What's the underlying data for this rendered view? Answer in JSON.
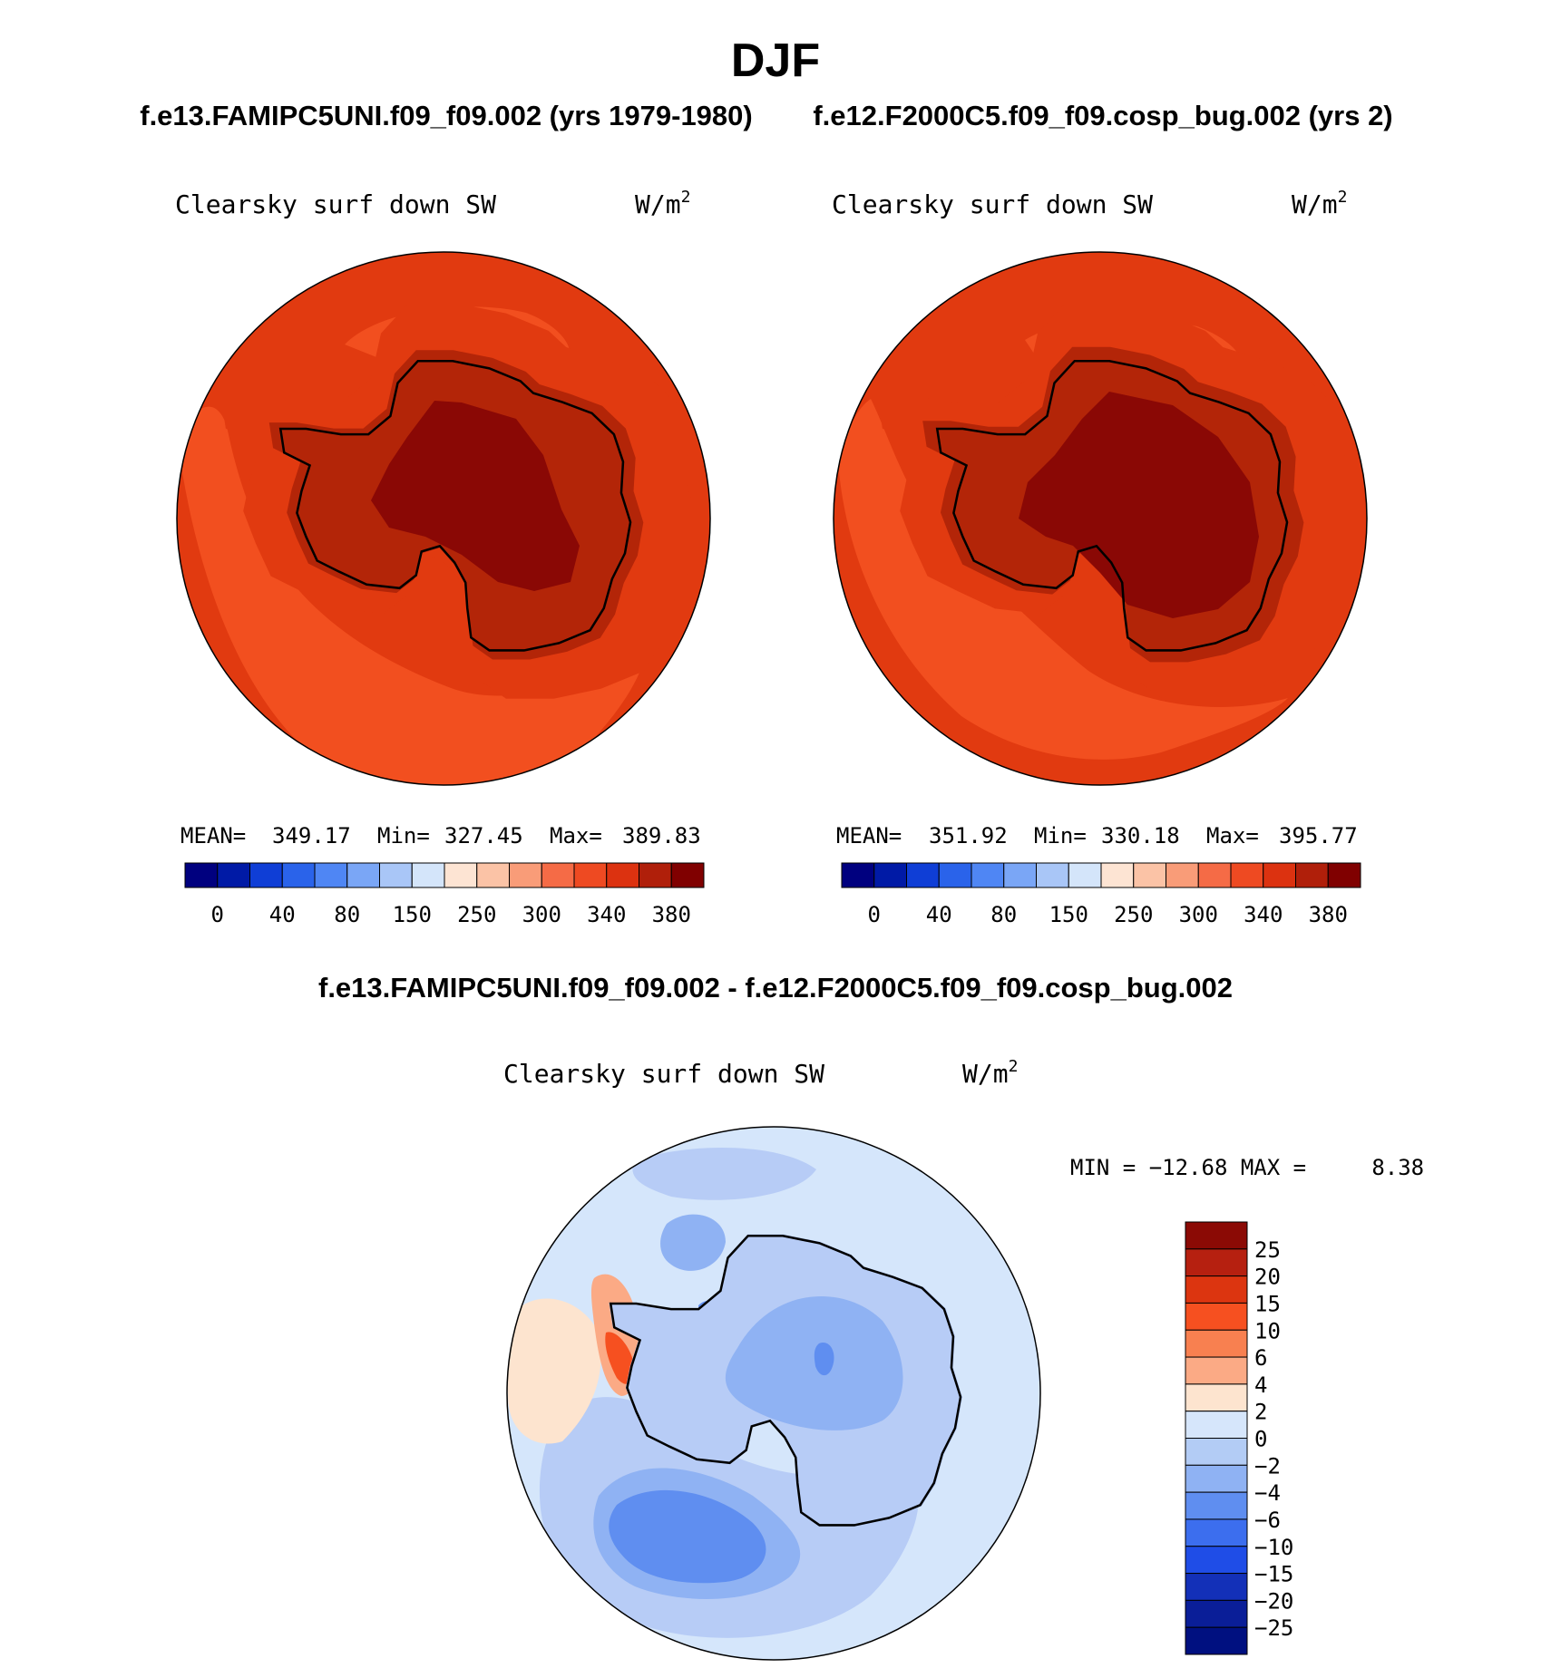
{
  "title": "DJF",
  "subtitle_left": "f.e13.FAMIPC5UNI.f09_f09.002 (yrs 1979-1980)",
  "subtitle_right": "f.e12.F2000C5.f09_f09.cosp_bug.002 (yrs 2)",
  "diff_title": "f.e13.FAMIPC5UNI.f09_f09.002 - f.e12.F2000C5.f09_f09.cosp_bug.002",
  "panels": {
    "left": {
      "variable": "Clearsky surf down SW",
      "units": "W/m",
      "units_sup": "2",
      "mean_label": "MEAN=",
      "mean_value": "349.17",
      "min_label": "Min=",
      "min_value": "327.45",
      "max_label": "Max=",
      "max_value": "389.83"
    },
    "right": {
      "variable": "Clearsky surf down SW",
      "units": "W/m",
      "units_sup": "2",
      "mean_label": "MEAN=",
      "mean_value": "351.92",
      "min_label": "Min=",
      "min_value": "330.18",
      "max_label": "Max=",
      "max_value": "395.77"
    },
    "diff": {
      "variable": "Clearsky surf down SW",
      "units": "W/m",
      "units_sup": "2",
      "minmax_text": "MIN = −12.68 MAX =     8.38"
    }
  },
  "colorbar_abs": {
    "labels": [
      "0",
      "40",
      "80",
      "150",
      "250",
      "300",
      "340",
      "380"
    ],
    "colors": [
      "#00007f",
      "#001aa6",
      "#0f3ed6",
      "#2a63ea",
      "#4f86f4",
      "#7aa6f6",
      "#a9c6f7",
      "#d4e5fa",
      "#fde4d3",
      "#fbc3a6",
      "#f99c78",
      "#f56b46",
      "#ee4a22",
      "#dc3210",
      "#b01f0a",
      "#800000"
    ]
  },
  "colorbar_diff": {
    "labels": [
      "25",
      "20",
      "15",
      "10",
      "6",
      "4",
      "2",
      "0",
      "−2",
      "−4",
      "−6",
      "−10",
      "−15",
      "−20",
      "−25"
    ],
    "colors": [
      "#8b0a05",
      "#b62010",
      "#dc3510",
      "#f65020",
      "#f88050",
      "#fbaa85",
      "#fde4cf",
      "#d6e6fb",
      "#b3ccf5",
      "#8fb2f3",
      "#5f8ef0",
      "#3c6eee",
      "#1f4de7",
      "#1330b8",
      "#0a1e98",
      "#001080"
    ]
  },
  "field_colors": {
    "ocean_outer": "#e13a10",
    "ocean_mid": "#f24f1f",
    "coast_ring": "#e13a10",
    "ice_outer": "#b32508",
    "ice_core": "#8a0805"
  },
  "diff_colors": {
    "background": "#d5e6fb",
    "light_blue": "#b7ccf6",
    "mid_blue": "#8fb2f3",
    "blue": "#5f8ef0",
    "dark_blue": "#3c6eee",
    "light_red": "#fde4cf",
    "salmon": "#fbaa85",
    "red": "#f65020"
  }
}
